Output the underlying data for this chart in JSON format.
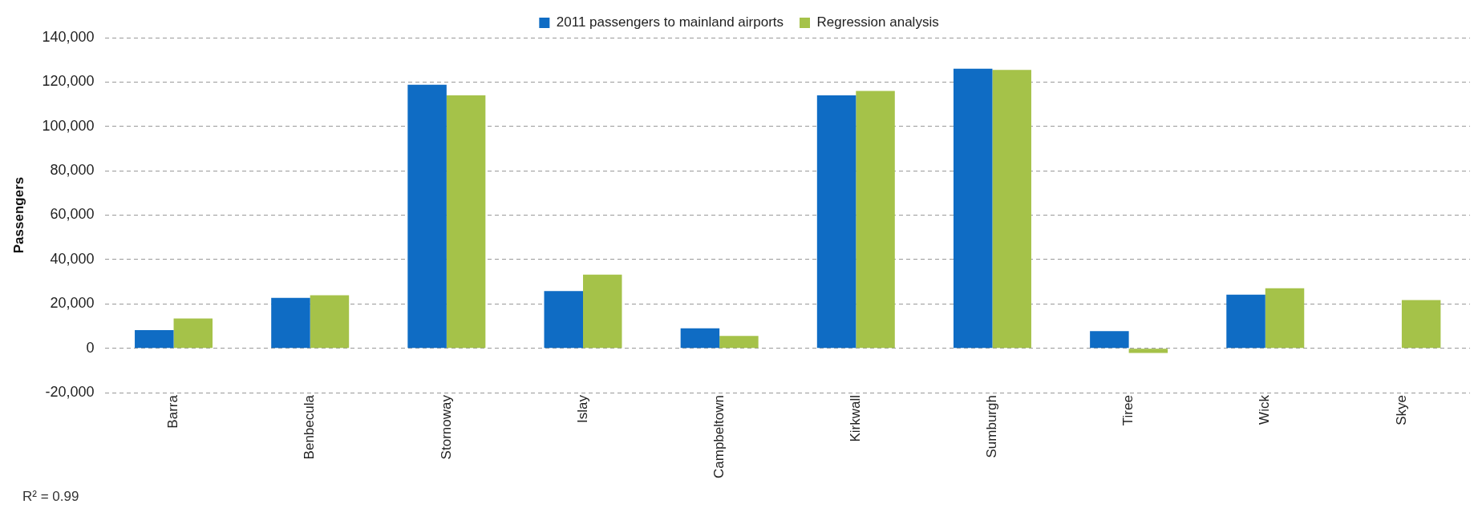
{
  "chart_data": {
    "type": "bar",
    "ylabel": "Passengers",
    "categories": [
      "Barra",
      "Benbecula",
      "Stornoway",
      "Islay",
      "Campbeltown",
      "Kirkwall",
      "Sumburgh",
      "Tiree",
      "Wick",
      "Skye"
    ],
    "series": [
      {
        "name": "2011 passengers to mainland airports",
        "color": "#0f6cc4",
        "values": [
          8200,
          22700,
          118800,
          25800,
          9000,
          114000,
          126000,
          7700,
          24200,
          null
        ]
      },
      {
        "name": "Regression analysis",
        "color": "#a5c249",
        "values": [
          13400,
          23900,
          114000,
          33200,
          5600,
          116000,
          125500,
          -2100,
          27100,
          21700
        ]
      }
    ],
    "ylim": [
      -20000,
      140000
    ],
    "yticks": [
      {
        "value": -20000,
        "label": "-20,000"
      },
      0,
      {
        "value": 20000,
        "label": "20,000"
      },
      {
        "value": 40000,
        "label": "40,000"
      },
      {
        "value": 60000,
        "label": "60,000"
      },
      {
        "value": 80000,
        "label": "80,000"
      },
      {
        "value": 100000,
        "label": "100,000"
      },
      {
        "value": 120000,
        "label": "120,000"
      },
      {
        "value": 140000,
        "label": "140,000"
      }
    ],
    "grid": "y",
    "legend": "top",
    "annotations": [
      "R² = 0.99"
    ]
  }
}
